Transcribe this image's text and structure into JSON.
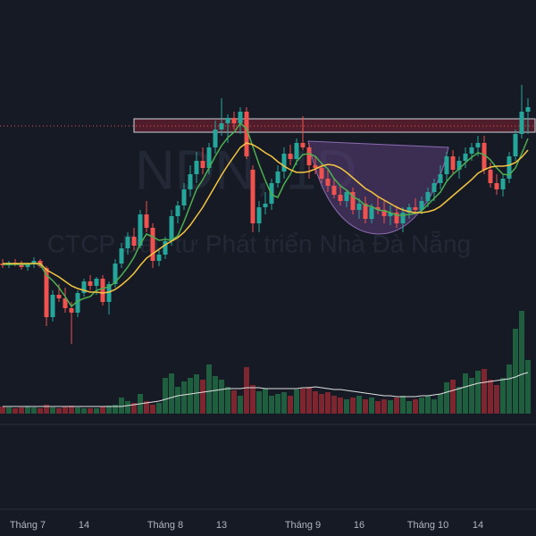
{
  "chart_data": {
    "type": "candlestick",
    "watermark": {
      "symbol": "NDN, 1D",
      "company": "CTCP Đầu tư Phát triển Nhà Đà Nẵng"
    },
    "categories": [
      null,
      null,
      null,
      null,
      "Tháng 7",
      null,
      null,
      null,
      null,
      null,
      null,
      null,
      null,
      "14",
      null,
      null,
      null,
      null,
      null,
      null,
      null,
      null,
      null,
      null,
      null,
      null,
      "Tháng 8",
      null,
      null,
      null,
      null,
      null,
      null,
      null,
      null,
      "13",
      null,
      null,
      null,
      null,
      null,
      null,
      null,
      null,
      null,
      null,
      null,
      null,
      "Tháng 9",
      null,
      null,
      null,
      null,
      null,
      null,
      null,
      null,
      "16",
      null,
      null,
      null,
      null,
      null,
      null,
      null,
      null,
      null,
      null,
      "Tháng 10",
      null,
      null,
      null,
      null,
      null,
      null,
      null,
      "14",
      null,
      null,
      null,
      null,
      null,
      null,
      null,
      null
    ],
    "open": [
      105,
      103,
      106,
      104,
      101,
      104,
      108,
      100,
      45,
      70,
      66,
      55,
      50,
      72,
      85,
      80,
      88,
      62,
      82,
      105,
      122,
      135,
      125,
      160,
      145,
      108,
      115,
      130,
      158,
      170,
      188,
      205,
      220,
      212,
      235,
      255,
      262,
      268,
      262,
      275,
      210,
      150,
      168,
      172,
      195,
      208,
      228,
      222,
      240,
      235,
      215,
      212,
      200,
      192,
      182,
      175,
      185,
      165,
      172,
      155,
      168,
      165,
      158,
      162,
      150,
      162,
      168,
      165,
      175,
      185,
      195,
      205,
      225,
      210,
      220,
      228,
      235,
      240,
      210,
      195,
      188,
      200,
      225,
      250,
      275
    ],
    "high": [
      110,
      108,
      110,
      108,
      106,
      112,
      110,
      102,
      75,
      82,
      78,
      62,
      75,
      88,
      92,
      90,
      92,
      85,
      110,
      128,
      140,
      145,
      165,
      175,
      150,
      120,
      135,
      165,
      175,
      195,
      215,
      230,
      235,
      240,
      265,
      290,
      272,
      275,
      280,
      280,
      215,
      175,
      185,
      200,
      215,
      235,
      238,
      245,
      270,
      240,
      225,
      218,
      210,
      200,
      192,
      188,
      190,
      178,
      180,
      172,
      180,
      175,
      170,
      170,
      168,
      172,
      178,
      180,
      190,
      200,
      215,
      230,
      232,
      225,
      235,
      240,
      248,
      248,
      218,
      205,
      205,
      230,
      255,
      305,
      290
    ],
    "low": [
      100,
      100,
      102,
      98,
      97,
      100,
      100,
      35,
      40,
      62,
      50,
      15,
      45,
      68,
      75,
      70,
      58,
      48,
      78,
      100,
      115,
      120,
      122,
      140,
      100,
      102,
      110,
      125,
      150,
      165,
      180,
      195,
      205,
      205,
      228,
      248,
      240,
      255,
      250,
      222,
      140,
      140,
      160,
      165,
      190,
      200,
      215,
      215,
      232,
      200,
      205,
      195,
      185,
      178,
      170,
      168,
      160,
      155,
      150,
      150,
      160,
      150,
      148,
      145,
      140,
      155,
      160,
      160,
      168,
      175,
      188,
      198,
      205,
      200,
      212,
      220,
      225,
      205,
      190,
      182,
      180,
      195,
      220,
      245,
      250
    ],
    "close": [
      103,
      106,
      104,
      101,
      104,
      108,
      102,
      45,
      70,
      66,
      55,
      50,
      72,
      85,
      80,
      88,
      62,
      82,
      105,
      122,
      135,
      125,
      160,
      145,
      108,
      115,
      130,
      158,
      170,
      188,
      205,
      220,
      212,
      235,
      255,
      262,
      268,
      262,
      275,
      225,
      150,
      168,
      172,
      195,
      208,
      228,
      222,
      240,
      235,
      215,
      212,
      200,
      192,
      182,
      175,
      185,
      165,
      172,
      155,
      168,
      165,
      158,
      162,
      150,
      162,
      168,
      165,
      175,
      185,
      195,
      205,
      225,
      210,
      220,
      228,
      235,
      240,
      210,
      195,
      188,
      200,
      225,
      250,
      275,
      280
    ],
    "volume": [
      8,
      7,
      6,
      7,
      8,
      7,
      6,
      10,
      7,
      6,
      8,
      9,
      7,
      6,
      6,
      6,
      8,
      9,
      10,
      18,
      14,
      12,
      22,
      14,
      10,
      12,
      40,
      45,
      30,
      36,
      40,
      44,
      38,
      55,
      42,
      38,
      30,
      26,
      20,
      52,
      32,
      25,
      28,
      20,
      22,
      24,
      20,
      27,
      28,
      30,
      25,
      22,
      24,
      20,
      18,
      16,
      18,
      20,
      16,
      18,
      14,
      16,
      15,
      18,
      20,
      14,
      16,
      18,
      20,
      16,
      22,
      35,
      38,
      30,
      45,
      40,
      48,
      50,
      38,
      32,
      40,
      55,
      95,
      115,
      60
    ],
    "overlays": [
      {
        "color": "#4caf50",
        "values": [
          104,
          104,
          104,
          104,
          104,
          105,
          104,
          92,
          86,
          78,
          68,
          57,
          63,
          66,
          68,
          75,
          77,
          79,
          84,
          92,
          101,
          112,
          127,
          138,
          135,
          131,
          132,
          131,
          136,
          152,
          170,
          188,
          199,
          212,
          225,
          237,
          246,
          252,
          262,
          256,
          236,
          216,
          198,
          182,
          179,
          194,
          205,
          219,
          227,
          228,
          225,
          217,
          211,
          200,
          192,
          187,
          180,
          176,
          170,
          169,
          165,
          164,
          162,
          159,
          159,
          160,
          161,
          164,
          171,
          178,
          185,
          197,
          205,
          211,
          218,
          224,
          229,
          227,
          221,
          212,
          205,
          204,
          212,
          228,
          245
        ]
      },
      {
        "color": "#f4c542",
        "values": [
          105,
          105,
          105,
          105,
          105,
          105,
          105,
          98,
          94,
          90,
          85,
          80,
          77,
          75,
          73,
          73,
          72,
          73,
          76,
          81,
          87,
          94,
          103,
          111,
          116,
          121,
          126,
          130,
          134,
          140,
          148,
          158,
          168,
          180,
          192,
          204,
          215,
          225,
          235,
          240,
          238,
          234,
          229,
          225,
          219,
          214,
          210,
          207,
          207,
          208,
          211,
          214,
          216,
          215,
          212,
          207,
          201,
          195,
          189,
          185,
          180,
          176,
          172,
          168,
          165,
          163,
          162,
          162,
          163,
          165,
          169,
          175,
          181,
          187,
          193,
          199,
          206,
          210,
          213,
          214,
          214,
          215,
          218,
          224,
          232
        ]
      }
    ],
    "volume_ma": {
      "color": "#e0e0e0",
      "values": [
        8,
        8,
        8,
        8,
        8,
        8,
        8,
        8,
        8,
        8,
        8,
        8,
        8,
        8,
        8,
        8,
        8,
        8,
        8,
        8,
        9,
        10,
        11,
        12,
        13,
        14,
        16,
        18,
        20,
        21,
        22,
        23,
        24,
        25,
        26,
        27,
        28,
        28,
        28,
        29,
        29,
        29,
        28,
        28,
        28,
        28,
        28,
        28,
        29,
        29,
        30,
        29,
        28,
        27,
        27,
        26,
        25,
        24,
        23,
        22,
        21,
        20,
        20,
        19,
        19,
        19,
        19,
        20,
        20,
        21,
        22,
        24,
        26,
        28,
        30,
        32,
        34,
        35,
        36,
        37,
        38,
        39,
        41,
        44,
        46
      ]
    },
    "zone": [
      252,
      267
    ],
    "level": 259,
    "up_color": "#26a69a",
    "down_color": "#ef5350",
    "vol_up_color": "#1f5e3f",
    "vol_down_color": "#7d2630",
    "ylim": [
      0,
      400
    ],
    "vlim": [
      0,
      200
    ]
  }
}
